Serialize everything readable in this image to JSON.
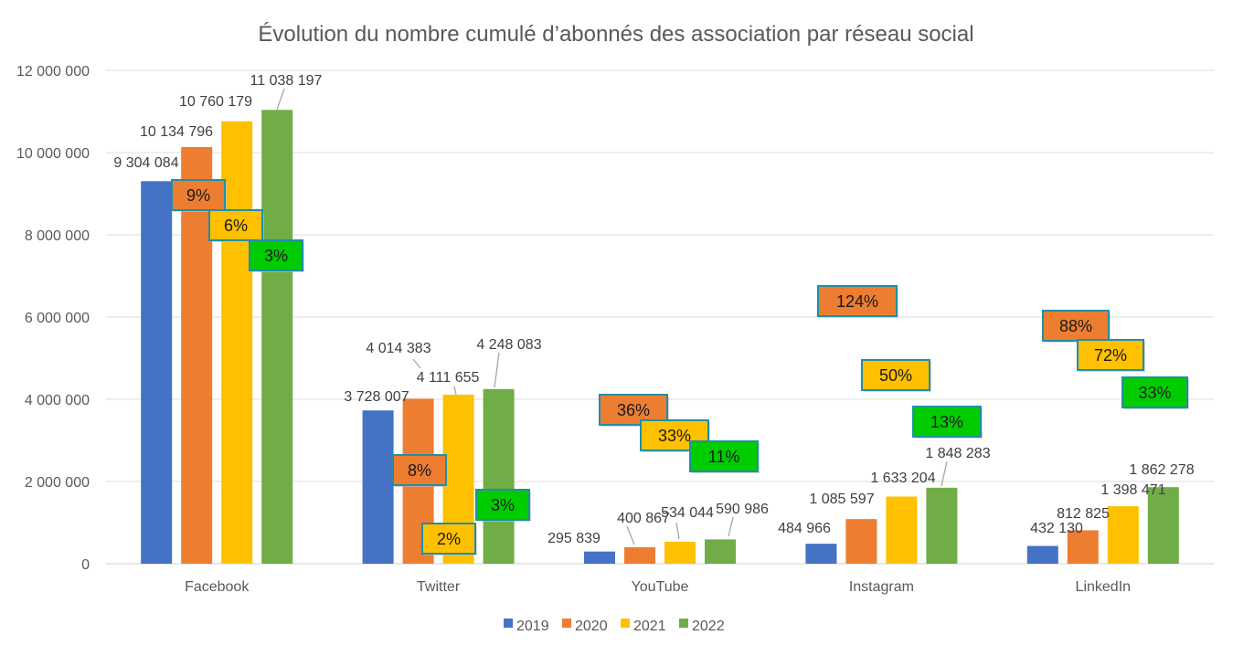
{
  "chart_data": {
    "type": "bar",
    "title": "Évolution du nombre cumulé d’abonnés des association par réseau social",
    "xlabel": "",
    "ylabel": "",
    "ylim": [
      0,
      12000000
    ],
    "yticks": [
      0,
      2000000,
      4000000,
      6000000,
      8000000,
      10000000,
      12000000
    ],
    "ytick_labels": [
      "0",
      "2 000 000",
      "4 000 000",
      "6 000 000",
      "8 000 000",
      "10 000 000",
      "12 000 000"
    ],
    "grid": true,
    "legend_position": "bottom",
    "categories": [
      "Facebook",
      "Twitter",
      "YouTube",
      "Instagram",
      "LinkedIn"
    ],
    "series": [
      {
        "name": "2019",
        "color": "#4472C4",
        "values": [
          9304084,
          3728007,
          295839,
          484966,
          432130
        ],
        "labels": [
          "9 304 084",
          "3 728 007",
          "295 839",
          "484 966",
          "432 130"
        ]
      },
      {
        "name": "2020",
        "color": "#ED7D31",
        "values": [
          10134796,
          4014383,
          400867,
          1085597,
          812825
        ],
        "labels": [
          "10 134 796",
          "4 014 383",
          "400 867",
          "1 085 597",
          "812 825"
        ]
      },
      {
        "name": "2021",
        "color": "#FFC000",
        "values": [
          10760179,
          4111655,
          534044,
          1633204,
          1398471
        ],
        "labels": [
          "10 760 179",
          "4 111 655",
          "534 044",
          "1 633 204",
          "1 398 471"
        ]
      },
      {
        "name": "2022",
        "color": "#70AD47",
        "values": [
          11038197,
          4248083,
          590986,
          1848283,
          1862278
        ],
        "labels": [
          "11 038 197",
          "4 248 083",
          "590 986",
          "1 848 283",
          "1 862 278"
        ]
      }
    ],
    "growth_annotations": [
      {
        "category": "Facebook",
        "items": [
          {
            "series": "2020",
            "text": "9%"
          },
          {
            "series": "2021",
            "text": "6%"
          },
          {
            "series": "2022",
            "text": "3%"
          }
        ]
      },
      {
        "category": "Twitter",
        "items": [
          {
            "series": "2020",
            "text": "8%"
          },
          {
            "series": "2021",
            "text": "2%"
          },
          {
            "series": "2022",
            "text": "3%"
          }
        ]
      },
      {
        "category": "YouTube",
        "items": [
          {
            "series": "2020",
            "text": "36%"
          },
          {
            "series": "2021",
            "text": "33%"
          },
          {
            "series": "2022",
            "text": "11%"
          }
        ]
      },
      {
        "category": "Instagram",
        "items": [
          {
            "series": "2020",
            "text": "124%"
          },
          {
            "series": "2021",
            "text": "50%"
          },
          {
            "series": "2022",
            "text": "13%"
          }
        ]
      },
      {
        "category": "LinkedIn",
        "items": [
          {
            "series": "2020",
            "text": "88%"
          },
          {
            "series": "2021",
            "text": "72%"
          },
          {
            "series": "2022",
            "text": "33%"
          }
        ]
      }
    ],
    "annotation_colors": {
      "2020": "#ED7D31",
      "2021": "#FFC000",
      "2022": "#00CC00",
      "border": "#1F8FA8"
    }
  }
}
